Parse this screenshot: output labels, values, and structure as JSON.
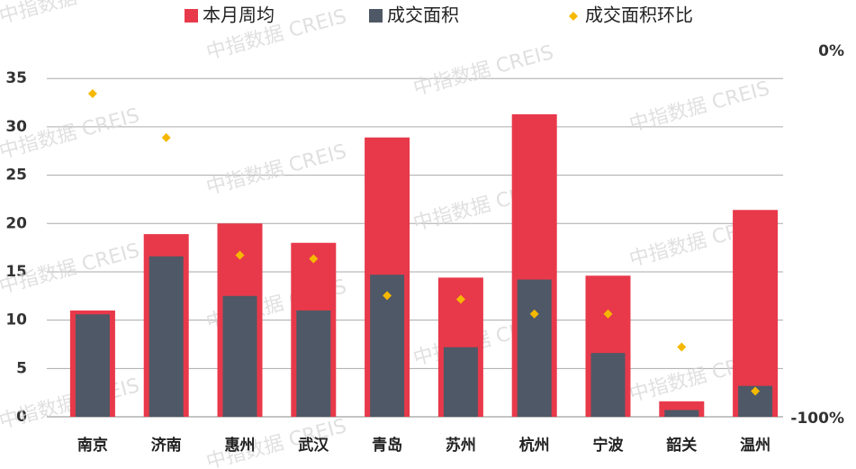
{
  "watermark": "中指数据 CREIS",
  "chart_data": {
    "type": "bar",
    "categories": [
      "南京",
      "济南",
      "惠州",
      "武汉",
      "青岛",
      "苏州",
      "杭州",
      "宁波",
      "韶关",
      "温州"
    ],
    "series": [
      {
        "name": "本月周均",
        "color": "#e8394a",
        "values": [
          11,
          18.9,
          20,
          18,
          28.9,
          14.4,
          31.3,
          14.6,
          1.6,
          21.4
        ]
      },
      {
        "name": "成交面积",
        "color": "#4f5866",
        "values": [
          10.6,
          16.6,
          12.5,
          11,
          14.7,
          7.2,
          14.2,
          6.6,
          0.7,
          3.2
        ]
      },
      {
        "name": "成交面积环比",
        "color": "#f5b800",
        "type": "scatter",
        "axis": "y2",
        "values": [
          -12,
          -24,
          -56,
          -57,
          -67,
          -68,
          -72,
          -72,
          -81,
          -93
        ]
      }
    ],
    "ylim": [
      0,
      38
    ],
    "yticks": [
      0,
      5,
      10,
      15,
      20,
      25,
      30,
      35
    ],
    "y2lim": [
      -100,
      0
    ],
    "y2ticks": [
      {
        "value": -100,
        "label": "-100%"
      },
      {
        "value": 0,
        "label": "0%"
      }
    ],
    "grid": true
  }
}
